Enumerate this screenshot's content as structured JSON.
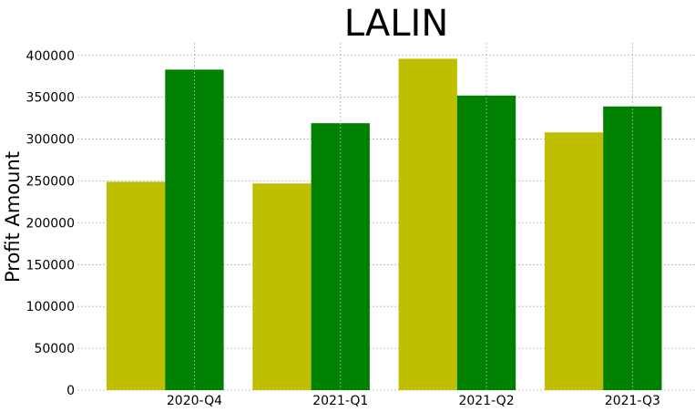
{
  "chart_data": {
    "type": "bar",
    "title": "LALIN",
    "xlabel": "",
    "ylabel": "Profit Amount",
    "categories": [
      "2020-Q4",
      "2021-Q1",
      "2021-Q2",
      "2021-Q3"
    ],
    "series": [
      {
        "values": [
          249000,
          247000,
          396000,
          308000
        ],
        "color": "#bfbf00"
      },
      {
        "values": [
          383000,
          319000,
          352000,
          339000
        ],
        "color": "#008000"
      }
    ],
    "ylim": [
      0,
      415000
    ],
    "yticks": [
      0,
      50000,
      100000,
      150000,
      200000,
      250000,
      300000,
      350000,
      400000
    ],
    "grid": true,
    "legend": "none"
  }
}
